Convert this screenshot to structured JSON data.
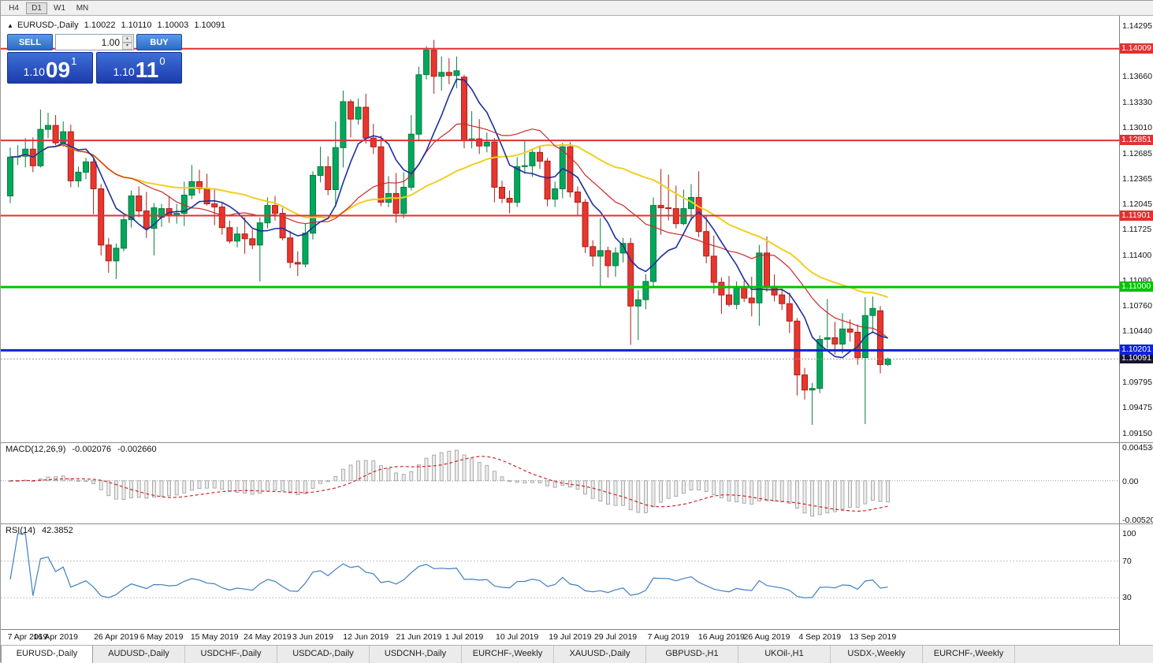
{
  "toolbar": {
    "timeframes": [
      {
        "label": "H4",
        "active": false
      },
      {
        "label": "D1",
        "active": true
      },
      {
        "label": "W1",
        "active": false
      },
      {
        "label": "MN",
        "active": false
      }
    ]
  },
  "chart": {
    "marker": "▲",
    "symbol_label": "EURUSD-,Daily",
    "ohlc": {
      "open": "1.10022",
      "high": "1.10110",
      "low": "1.10003",
      "close": "1.10091"
    }
  },
  "trade_panel": {
    "sell_label": "SELL",
    "buy_label": "BUY",
    "lot_value": "1.00",
    "sell_price": {
      "main": "1.10",
      "pips": "09",
      "point": "1"
    },
    "buy_price": {
      "main": "1.10",
      "pips": "11",
      "point": "0"
    }
  },
  "chart_data": {
    "type": "candlestick",
    "symbol": "EURUSD",
    "timeframe": "Daily",
    "up_color": "#00a85c",
    "down_color": "#e8362e",
    "up_border": "#0a7a42",
    "down_border": "#a8201a",
    "price_axis_ticks": [
      "1.14295",
      "1.13995",
      "1.13660",
      "1.13330",
      "1.13010",
      "1.12685",
      "1.12365",
      "1.12045",
      "1.11725",
      "1.11400",
      "1.11080",
      "1.10760",
      "1.10440",
      "1.09795",
      "1.09475",
      "1.09150"
    ],
    "levels": [
      {
        "price": 1.14009,
        "label": "1.14009",
        "color": "#e03232",
        "width": 2
      },
      {
        "price": 1.12851,
        "label": "1.12851",
        "color": "#e03232",
        "width": 2
      },
      {
        "price": 1.11901,
        "label": "1.11901",
        "color": "#e03232",
        "width": 2
      },
      {
        "price": 1.11,
        "label": "1.11000",
        "color": "#00c400",
        "width": 3
      },
      {
        "price": 1.10201,
        "label": "1.10201",
        "color": "#1021dd",
        "width": 3
      }
    ],
    "current_price": {
      "price": 1.10091,
      "label": "1.10091",
      "bg": "#15152f"
    },
    "moving_averages": [
      {
        "period": 32,
        "color": "#f0cf20",
        "width": 2
      },
      {
        "period": 17,
        "color": "#c92a2a",
        "width": 1.2
      },
      {
        "period": 7,
        "color": "#1b2f9e",
        "width": 1.6
      }
    ],
    "time_ticks": [
      {
        "i": 0,
        "label": "7 Apr 2019"
      },
      {
        "i": 6,
        "label": "16 Apr 2019"
      },
      {
        "i": 14,
        "label": "26 Apr 2019"
      },
      {
        "i": 20,
        "label": "6 May 2019"
      },
      {
        "i": 27,
        "label": "15 May 2019"
      },
      {
        "i": 34,
        "label": "24 May 2019"
      },
      {
        "i": 40,
        "label": "3 Jun 2019"
      },
      {
        "i": 47,
        "label": "12 Jun 2019"
      },
      {
        "i": 54,
        "label": "21 Jun 2019"
      },
      {
        "i": 60,
        "label": "1 Jul 2019"
      },
      {
        "i": 67,
        "label": "10 Jul 2019"
      },
      {
        "i": 74,
        "label": "19 Jul 2019"
      },
      {
        "i": 80,
        "label": "29 Jul 2019"
      },
      {
        "i": 87,
        "label": "7 Aug 2019"
      },
      {
        "i": 94,
        "label": "16 Aug 2019"
      },
      {
        "i": 100,
        "label": "26 Aug 2019"
      },
      {
        "i": 107,
        "label": "4 Sep 2019"
      },
      {
        "i": 114,
        "label": "13 Sep 2019"
      }
    ],
    "candles": [
      [
        "8 Apr",
        1.1215,
        1.1276,
        1.1206,
        1.1264
      ],
      [
        "9 Apr",
        1.1264,
        1.1279,
        1.1254,
        1.1265
      ],
      [
        "10 Apr",
        1.1265,
        1.1288,
        1.1251,
        1.1274
      ],
      [
        "11 Apr",
        1.1274,
        1.1289,
        1.1245,
        1.1253
      ],
      [
        "12 Apr",
        1.1253,
        1.1324,
        1.1251,
        1.1299
      ],
      [
        "15 Apr",
        1.1299,
        1.132,
        1.1288,
        1.1304
      ],
      [
        "16 Apr",
        1.1304,
        1.1317,
        1.1279,
        1.1282
      ],
      [
        "17 Apr",
        1.1282,
        1.1309,
        1.1277,
        1.1296
      ],
      [
        "18 Apr",
        1.1296,
        1.1305,
        1.1226,
        1.1234
      ],
      [
        "19 Apr",
        1.1234,
        1.1252,
        1.1226,
        1.1245
      ],
      [
        "22 Apr",
        1.1245,
        1.1263,
        1.1236,
        1.1258
      ],
      [
        "23 Apr",
        1.1258,
        1.1262,
        1.1192,
        1.1224
      ],
      [
        "24 Apr",
        1.1224,
        1.123,
        1.114,
        1.1153
      ],
      [
        "25 Apr",
        1.1153,
        1.1162,
        1.1118,
        1.1133
      ],
      [
        "26 Apr",
        1.1133,
        1.1155,
        1.111,
        1.1149
      ],
      [
        "29 Apr",
        1.1149,
        1.119,
        1.1145,
        1.1185
      ],
      [
        "30 Apr",
        1.1185,
        1.1222,
        1.1175,
        1.1215
      ],
      [
        "1 May",
        1.1215,
        1.1227,
        1.1188,
        1.1196
      ],
      [
        "2 May",
        1.1196,
        1.122,
        1.1162,
        1.1174
      ],
      [
        "3 May",
        1.1174,
        1.1206,
        1.114,
        1.12
      ],
      [
        "6 May",
        1.1188,
        1.1205,
        1.1176,
        1.1199
      ],
      [
        "7 May",
        1.1199,
        1.1215,
        1.1181,
        1.119
      ],
      [
        "8 May",
        1.119,
        1.1205,
        1.118,
        1.1193
      ],
      [
        "9 May",
        1.1193,
        1.1233,
        1.1177,
        1.1216
      ],
      [
        "10 May",
        1.1216,
        1.1254,
        1.1211,
        1.1233
      ],
      [
        "13 May",
        1.1233,
        1.1248,
        1.1218,
        1.1224
      ],
      [
        "14 May",
        1.1224,
        1.1243,
        1.1203,
        1.1205
      ],
      [
        "15 May",
        1.1205,
        1.1224,
        1.1178,
        1.1201
      ],
      [
        "16 May",
        1.1201,
        1.1206,
        1.1166,
        1.1175
      ],
      [
        "17 May",
        1.1175,
        1.1184,
        1.1155,
        1.1158
      ],
      [
        "20 May",
        1.1158,
        1.1176,
        1.115,
        1.1167
      ],
      [
        "21 May",
        1.1167,
        1.1188,
        1.1142,
        1.1161
      ],
      [
        "22 May",
        1.1161,
        1.1173,
        1.1148,
        1.1153
      ],
      [
        "23 May",
        1.1153,
        1.1188,
        1.1107,
        1.1181
      ],
      [
        "24 May",
        1.1181,
        1.1213,
        1.1174,
        1.1203
      ],
      [
        "27 May",
        1.1203,
        1.1215,
        1.1184,
        1.1193
      ],
      [
        "28 May",
        1.1193,
        1.12,
        1.1159,
        1.1162
      ],
      [
        "29 May",
        1.1162,
        1.1171,
        1.1124,
        1.1131
      ],
      [
        "30 May",
        1.1131,
        1.1145,
        1.1114,
        1.1129
      ],
      [
        "31 May",
        1.1129,
        1.118,
        1.1125,
        1.1168
      ],
      [
        "3 Jun",
        1.1168,
        1.1246,
        1.116,
        1.1241
      ],
      [
        "4 Jun",
        1.1241,
        1.1277,
        1.1232,
        1.1252
      ],
      [
        "5 Jun",
        1.1252,
        1.1265,
        1.1216,
        1.1223
      ],
      [
        "6 Jun",
        1.1223,
        1.1309,
        1.1201,
        1.1276
      ],
      [
        "7 Jun",
        1.1276,
        1.1348,
        1.1251,
        1.1334
      ],
      [
        "10 Jun",
        1.1334,
        1.1337,
        1.1289,
        1.1312
      ],
      [
        "11 Jun",
        1.1312,
        1.1338,
        1.1305,
        1.1327
      ],
      [
        "12 Jun",
        1.1327,
        1.1344,
        1.1281,
        1.1288
      ],
      [
        "13 Jun",
        1.1288,
        1.1306,
        1.1268,
        1.1277
      ],
      [
        "14 Jun",
        1.1277,
        1.1291,
        1.1202,
        1.1207
      ],
      [
        "17 Jun",
        1.1207,
        1.124,
        1.1201,
        1.1218
      ],
      [
        "18 Jun",
        1.1218,
        1.1244,
        1.1181,
        1.1193
      ],
      [
        "19 Jun",
        1.1193,
        1.1245,
        1.1187,
        1.1226
      ],
      [
        "20 Jun",
        1.1226,
        1.1317,
        1.1222,
        1.1293
      ],
      [
        "21 Jun",
        1.1293,
        1.1378,
        1.1285,
        1.1368
      ],
      [
        "24 Jun",
        1.1368,
        1.1404,
        1.1362,
        1.1399
      ],
      [
        "25 Jun",
        1.1399,
        1.1412,
        1.1344,
        1.1366
      ],
      [
        "26 Jun",
        1.1366,
        1.1391,
        1.1348,
        1.1371
      ],
      [
        "27 Jun",
        1.1371,
        1.1389,
        1.1356,
        1.1367
      ],
      [
        "28 Jun",
        1.1367,
        1.1391,
        1.1351,
        1.1373
      ],
      [
        "1 Jul",
        1.1365,
        1.1368,
        1.1275,
        1.1285
      ],
      [
        "2 Jul",
        1.1285,
        1.1322,
        1.1275,
        1.1287
      ],
      [
        "3 Jul",
        1.1287,
        1.1312,
        1.1268,
        1.1278
      ],
      [
        "4 Jul",
        1.1278,
        1.1295,
        1.127,
        1.1283
      ],
      [
        "5 Jul",
        1.1283,
        1.1288,
        1.1207,
        1.1226
      ],
      [
        "8 Jul",
        1.1226,
        1.1234,
        1.1206,
        1.1212
      ],
      [
        "9 Jul",
        1.1212,
        1.1222,
        1.1193,
        1.1207
      ],
      [
        "10 Jul",
        1.1207,
        1.1264,
        1.1201,
        1.1252
      ],
      [
        "11 Jul",
        1.1252,
        1.1286,
        1.1243,
        1.1253
      ],
      [
        "12 Jul",
        1.1253,
        1.1275,
        1.1239,
        1.127
      ],
      [
        "15 Jul",
        1.127,
        1.1277,
        1.1249,
        1.1259
      ],
      [
        "16 Jul",
        1.1259,
        1.1263,
        1.1202,
        1.1211
      ],
      [
        "17 Jul",
        1.1211,
        1.1233,
        1.1201,
        1.1224
      ],
      [
        "18 Jul",
        1.1224,
        1.1282,
        1.1212,
        1.1277
      ],
      [
        "19 Jul",
        1.1277,
        1.1283,
        1.1213,
        1.122
      ],
      [
        "22 Jul",
        1.122,
        1.1227,
        1.1191,
        1.1207
      ],
      [
        "23 Jul",
        1.1207,
        1.1211,
        1.1143,
        1.1151
      ],
      [
        "24 Jul",
        1.1151,
        1.1159,
        1.1126,
        1.1139
      ],
      [
        "25 Jul",
        1.1139,
        1.1187,
        1.1101,
        1.1146
      ],
      [
        "26 Jul",
        1.1146,
        1.1151,
        1.1112,
        1.1127
      ],
      [
        "29 Jul",
        1.1127,
        1.115,
        1.1113,
        1.1143
      ],
      [
        "30 Jul",
        1.1143,
        1.1162,
        1.1131,
        1.1155
      ],
      [
        "31 Jul",
        1.1155,
        1.1162,
        1.1027,
        1.1076
      ],
      [
        "1 Aug",
        1.1076,
        1.1096,
        1.1033,
        1.1084
      ],
      [
        "2 Aug",
        1.1084,
        1.1116,
        1.1072,
        1.1107
      ],
      [
        "5 Aug",
        1.1107,
        1.1213,
        1.1101,
        1.1203
      ],
      [
        "6 Aug",
        1.1203,
        1.1249,
        1.1166,
        1.12
      ],
      [
        "7 Aug",
        1.12,
        1.1242,
        1.1184,
        1.1199
      ],
      [
        "8 Aug",
        1.1199,
        1.1228,
        1.1174,
        1.118
      ],
      [
        "9 Aug",
        1.118,
        1.1223,
        1.1178,
        1.1199
      ],
      [
        "12 Aug",
        1.1199,
        1.123,
        1.1184,
        1.1213
      ],
      [
        "13 Aug",
        1.1213,
        1.1246,
        1.1163,
        1.117
      ],
      [
        "14 Aug",
        1.117,
        1.1191,
        1.113,
        1.1139
      ],
      [
        "15 Aug",
        1.1139,
        1.1165,
        1.1092,
        1.1106
      ],
      [
        "16 Aug",
        1.1106,
        1.1112,
        1.1066,
        1.109
      ],
      [
        "19 Aug",
        1.109,
        1.1114,
        1.1075,
        1.1078
      ],
      [
        "20 Aug",
        1.1078,
        1.1107,
        1.1072,
        1.1099
      ],
      [
        "21 Aug",
        1.1099,
        1.1108,
        1.1081,
        1.1086
      ],
      [
        "22 Aug",
        1.1086,
        1.1113,
        1.1063,
        1.108
      ],
      [
        "23 Aug",
        1.108,
        1.1153,
        1.1051,
        1.1143
      ],
      [
        "26 Aug",
        1.1143,
        1.1164,
        1.1094,
        1.1101
      ],
      [
        "27 Aug",
        1.1101,
        1.1116,
        1.1082,
        1.109
      ],
      [
        "28 Aug",
        1.109,
        1.1098,
        1.1071,
        1.1079
      ],
      [
        "29 Aug",
        1.1079,
        1.1093,
        1.1042,
        1.1057
      ],
      [
        "30 Aug",
        1.1057,
        1.1061,
        1.0963,
        1.0989
      ],
      [
        "2 Sep",
        1.0989,
        1.0998,
        1.0958,
        1.097
      ],
      [
        "3 Sep",
        1.097,
        1.0979,
        1.0926,
        1.0972
      ],
      [
        "4 Sep",
        1.0972,
        1.1039,
        1.0966,
        1.1034
      ],
      [
        "5 Sep",
        1.1034,
        1.1085,
        1.1022,
        1.1036
      ],
      [
        "6 Sep",
        1.1036,
        1.1056,
        1.1015,
        1.1028
      ],
      [
        "9 Sep",
        1.1028,
        1.1067,
        1.1016,
        1.1047
      ],
      [
        "10 Sep",
        1.1047,
        1.1059,
        1.1031,
        1.1043
      ],
      [
        "11 Sep",
        1.1043,
        1.1053,
        1.1002,
        1.1011
      ],
      [
        "12 Sep",
        1.1011,
        1.1087,
        1.0927,
        1.1064
      ],
      [
        "13 Sep",
        1.1064,
        1.1088,
        1.1043,
        1.1073
      ],
      [
        "16 Sep",
        1.107,
        1.1076,
        1.0991,
        1.1002
      ],
      [
        "17 Sep",
        1.10022,
        1.1011,
        1.10003,
        1.10091
      ]
    ]
  },
  "macd": {
    "label": "MACD(12,26,9)",
    "main_value": "-0.002076",
    "signal_value": "-0.002660",
    "params": {
      "fast": 12,
      "slow": 26,
      "signal": 9
    },
    "axis_max": "0.004536",
    "axis_zero": "0.00",
    "axis_min": "-0.005205",
    "histogram_color": "#ececec",
    "signal_color": "#cc2626"
  },
  "rsi": {
    "label": "RSI(14)",
    "value": "42.3852",
    "period": 14,
    "axis": [
      "100",
      "70",
      "30"
    ],
    "levels": [
      70,
      30
    ],
    "line_color": "#3f7fc1"
  },
  "tabs": [
    {
      "label": "EURUSD-,Daily",
      "active": true
    },
    {
      "label": "AUDUSD-,Daily",
      "active": false
    },
    {
      "label": "USDCHF-,Daily",
      "active": false
    },
    {
      "label": "USDCAD-,Daily",
      "active": false
    },
    {
      "label": "USDCNH-,Daily",
      "active": false
    },
    {
      "label": "EURCHF-,Weekly",
      "active": false
    },
    {
      "label": "XAUUSD-,Daily",
      "active": false
    },
    {
      "label": "GBPUSD-,H1",
      "active": false
    },
    {
      "label": "UKOil-,H1",
      "active": false
    },
    {
      "label": "USDX-,Weekly",
      "active": false
    },
    {
      "label": "EURCHF-,Weekly",
      "active": false
    }
  ]
}
